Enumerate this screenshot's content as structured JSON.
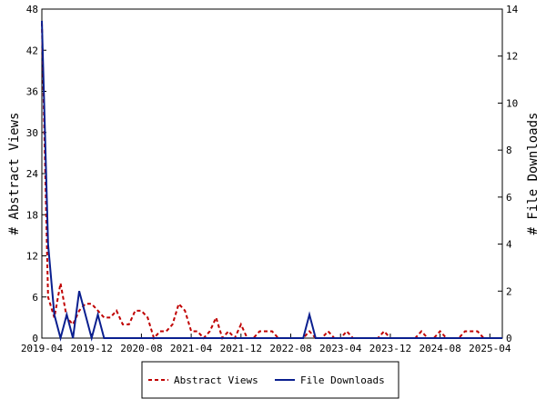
{
  "chart_data": {
    "type": "line",
    "y_left_label": "# Abstract Views",
    "y_right_label": "# File Downloads",
    "ylim_left": [
      0,
      48
    ],
    "ylim_right": [
      0,
      14
    ],
    "y_left_ticks": [
      "0",
      "6",
      "12",
      "18",
      "24",
      "30",
      "36",
      "42",
      "48"
    ],
    "y_right_ticks": [
      "0",
      "2",
      "4",
      "6",
      "8",
      "10",
      "12",
      "14"
    ],
    "x_tick_labels": [
      "2019-04",
      "2019-12",
      "2020-08",
      "2021-04",
      "2021-12",
      "2022-08",
      "2023-04",
      "2023-12",
      "2024-08",
      "2025-04"
    ],
    "x_tick_positions_in_months": [
      0,
      8,
      16,
      24,
      32,
      40,
      48,
      56,
      64,
      72
    ],
    "x_range_months": [
      0,
      74
    ],
    "legend_position": "bottom",
    "series": [
      {
        "name": "Abstract Views",
        "axis": "left",
        "color": "#c00000",
        "style": "dashed",
        "values": [
          46,
          6,
          3,
          8,
          3,
          2,
          4,
          5,
          5,
          4,
          3,
          3,
          4,
          2,
          2,
          4,
          4,
          3,
          0,
          1,
          1,
          2,
          5,
          4,
          1,
          1,
          0,
          1,
          3,
          0,
          1,
          0,
          2,
          0,
          0,
          1,
          1,
          1,
          0,
          0,
          0,
          0,
          0,
          1,
          0,
          0,
          1,
          0,
          0,
          1,
          0,
          0,
          0,
          0,
          0,
          1,
          0,
          0,
          0,
          0,
          0,
          1,
          0,
          0,
          1,
          0,
          0,
          0,
          1,
          1,
          1,
          0,
          0,
          0,
          0
        ]
      },
      {
        "name": "File Downloads",
        "axis": "right",
        "color": "#0a1f8f",
        "style": "solid",
        "values": [
          13.5,
          4,
          1,
          0,
          1,
          0,
          2,
          1,
          0,
          1,
          0,
          0,
          0,
          0,
          0,
          0,
          0,
          0,
          0,
          0,
          0,
          0,
          0,
          0,
          0,
          0,
          0,
          0,
          0,
          0,
          0,
          0,
          0,
          0,
          0,
          0,
          0,
          0,
          0,
          0,
          0,
          0,
          0,
          1,
          0,
          0,
          0,
          0,
          0,
          0,
          0,
          0,
          0,
          0,
          0,
          0,
          0,
          0,
          0,
          0,
          0,
          0,
          0,
          0,
          0,
          0,
          0,
          0,
          0,
          0,
          0,
          0,
          0,
          0,
          0
        ]
      }
    ]
  }
}
